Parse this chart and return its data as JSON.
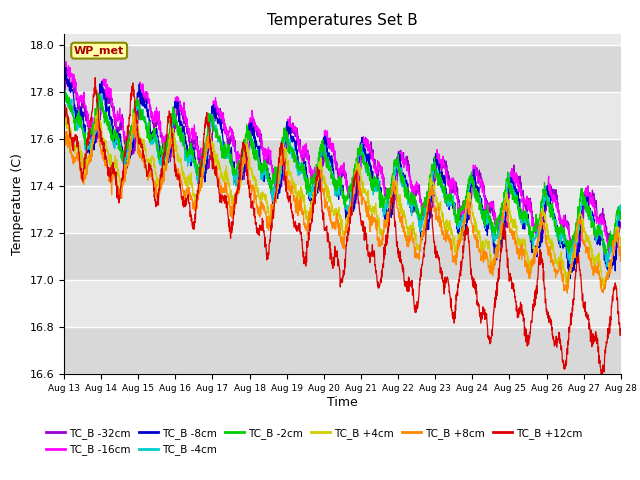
{
  "title": "Temperatures Set B",
  "xlabel": "Time",
  "ylabel": "Temperature (C)",
  "ylim": [
    16.6,
    18.05
  ],
  "yticks": [
    16.6,
    16.8,
    17.0,
    17.2,
    17.4,
    17.6,
    17.8,
    18.0
  ],
  "x_labels": [
    "Aug 13",
    "Aug 14",
    "Aug 15",
    "Aug 16",
    "Aug 17",
    "Aug 18",
    "Aug 19",
    "Aug 20",
    "Aug 21",
    "Aug 22",
    "Aug 23",
    "Aug 24",
    "Aug 25",
    "Aug 26",
    "Aug 27",
    "Aug 28"
  ],
  "series": [
    {
      "label": "TC_B -32cm",
      "color": "#9900CC"
    },
    {
      "label": "TC_B -16cm",
      "color": "#FF00FF"
    },
    {
      "label": "TC_B -8cm",
      "color": "#0000CC"
    },
    {
      "label": "TC_B -4cm",
      "color": "#00CCCC"
    },
    {
      "label": "TC_B -2cm",
      "color": "#00CC00"
    },
    {
      "label": "TC_B +4cm",
      "color": "#CCCC00"
    },
    {
      "label": "TC_B +8cm",
      "color": "#FF8800"
    },
    {
      "label": "TC_B +12cm",
      "color": "#DD0000"
    }
  ],
  "wp_met_label": "WP_met",
  "wp_met_color": "#AA0000",
  "wp_met_bg": "#FFFFAA",
  "wp_met_edge": "#888800",
  "plot_bg": "#E8E8E8",
  "fig_bg": "#FFFFFF"
}
